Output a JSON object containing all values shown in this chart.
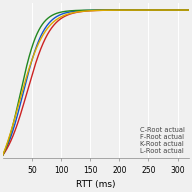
{
  "title": "",
  "xlabel": "RTT (ms)",
  "ylabel": "",
  "xlim": [
    0,
    320
  ],
  "ylim": [
    -0.02,
    1.05
  ],
  "lines": [
    {
      "label": "C-Root actual",
      "color": "#1155cc",
      "mu": 35,
      "scale": 18
    },
    {
      "label": "F-Root actual",
      "color": "#cc2222",
      "mu": 42,
      "scale": 20
    },
    {
      "label": "K-Root actual",
      "color": "#228822",
      "mu": 30,
      "scale": 16
    },
    {
      "label": "L-Root actual",
      "color": "#ddaa00",
      "mu": 28,
      "scale": 22
    }
  ],
  "background_color": "#f0f0f0",
  "grid_color": "#ffffff",
  "legend_fontsize": 4.8,
  "axis_fontsize": 6.5,
  "tick_fontsize": 5.5,
  "linewidth": 1.0,
  "xticks": [
    50,
    100,
    150,
    200,
    250,
    300
  ]
}
